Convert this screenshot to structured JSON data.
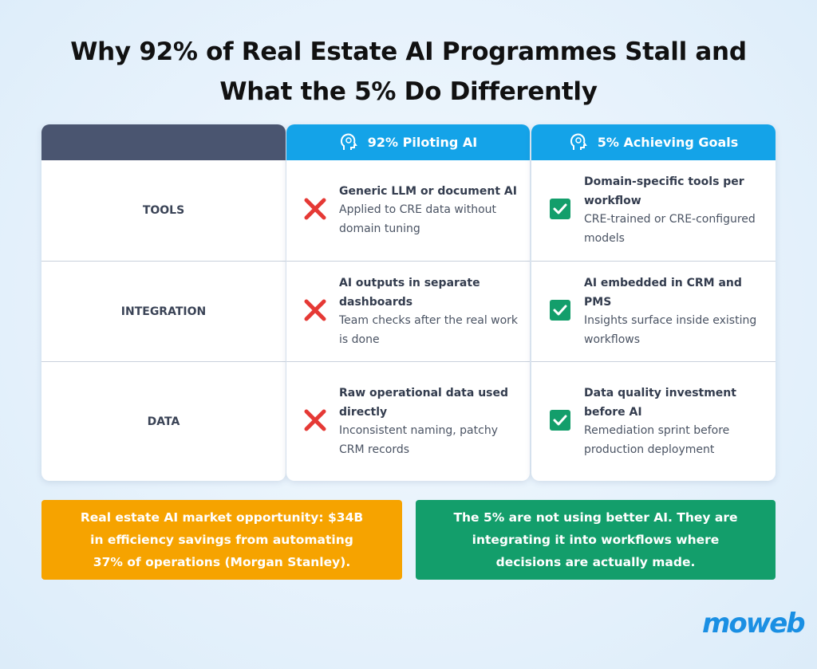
{
  "header": {
    "title": "Why 92% of Real Estate AI Programmes Stall and What the 5% Do Differently"
  },
  "table": {
    "columns": [
      "92% Piloting AI",
      "5% Achieving Goals"
    ],
    "rows": [
      {
        "label": "TOOLS",
        "left": {
          "heading": "Generic LLM or document AI",
          "detail": "Applied to CRE data without domain tuning"
        },
        "right": {
          "heading": "Domain-specific tools per workflow",
          "detail": "CRE-trained or CRE-configured models"
        }
      },
      {
        "label": "INTEGRATION",
        "left": {
          "heading": "AI outputs in separate dashboards",
          "detail": "Team checks after the real work is done"
        },
        "right": {
          "heading": "AI embedded in CRM and PMS",
          "detail": "Insights surface inside existing workflows"
        }
      },
      {
        "label": "DATA",
        "left": {
          "heading": "Raw operational data used directly",
          "detail": "Inconsistent naming, patchy CRM records"
        },
        "right": {
          "heading": "Data quality investment before AI",
          "detail": "Remediation sprint before production deployment"
        }
      }
    ]
  },
  "callouts": [
    "Real estate AI market opportunity: $34B in efficiency savings from automating 37% of operations (Morgan Stanley).",
    "The 5% are not using better AI. They are integrating it into workflows where decisions are actually made."
  ],
  "logo": "moweb"
}
